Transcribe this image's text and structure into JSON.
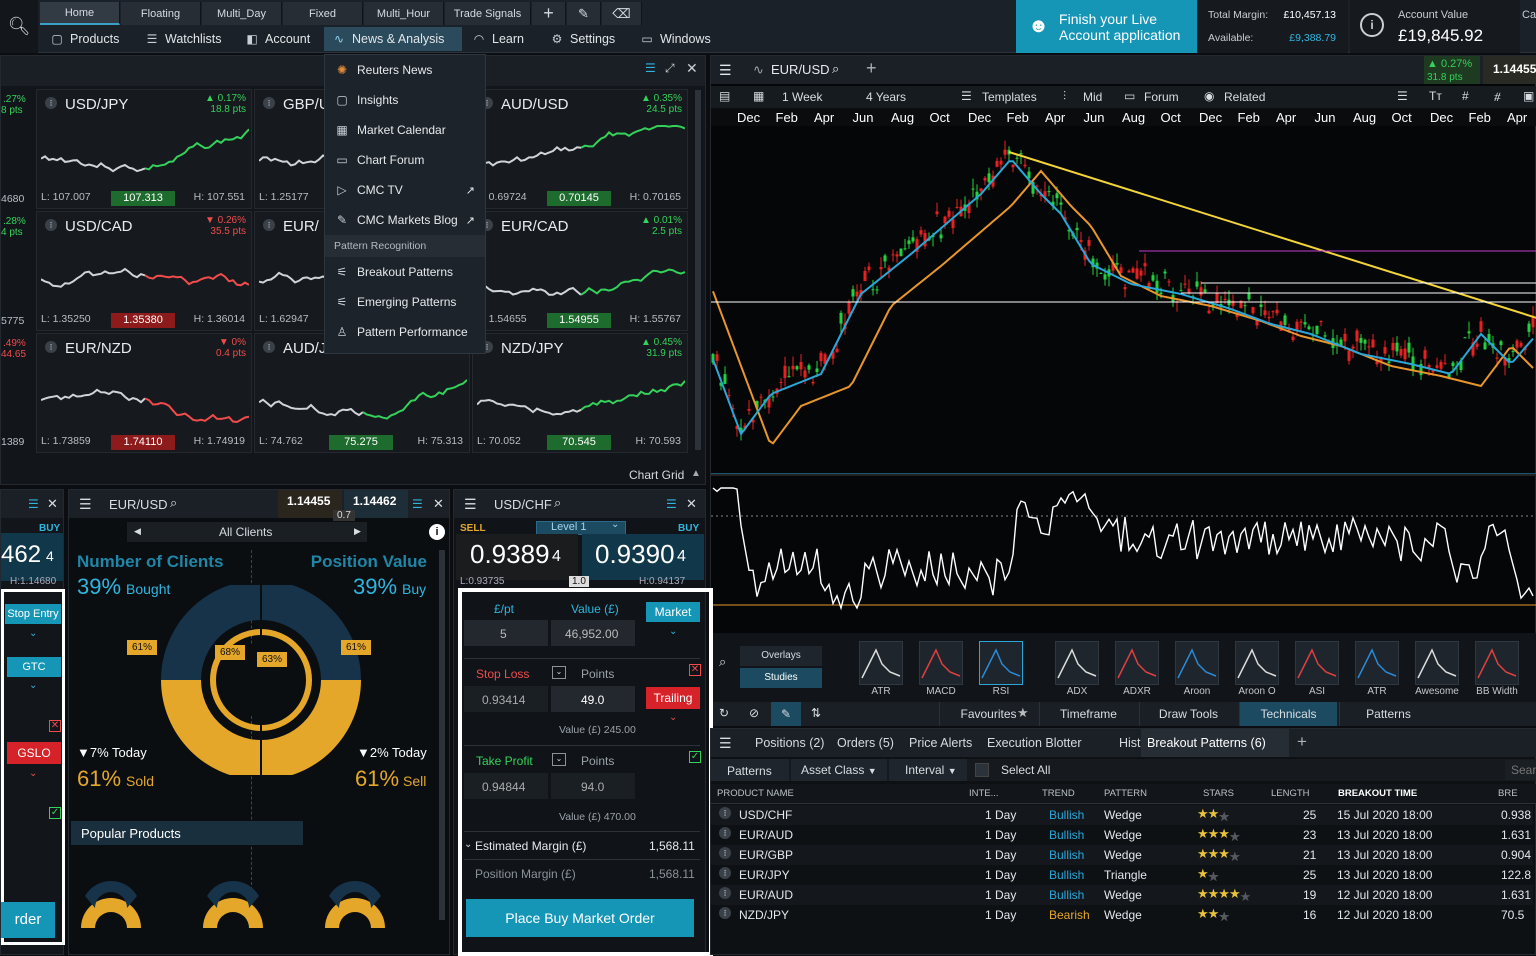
{
  "workspace_tabs": [
    "Home",
    "Floating",
    "Multi_Day",
    "Fixed",
    "Multi_Hour",
    "Trade Signals"
  ],
  "main_menu": [
    "Products",
    "Watchlists",
    "Account",
    "News & Analysis",
    "Learn",
    "Settings",
    "Windows"
  ],
  "finish_banner": "Finish your Live Account application",
  "margin": {
    "total_label": "Total Margin:",
    "total_value": "£10,457.13",
    "available_label": "Available:",
    "available_value": "£9,388.79"
  },
  "account": {
    "label": "Account Value",
    "value": "£19,845.92",
    "extra": "Ca"
  },
  "news_menu": {
    "items": [
      "Reuters News",
      "Insights",
      "Market Calendar",
      "Chart Forum",
      "CMC TV",
      "CMC Markets Blog"
    ],
    "section": "Pattern Recognition",
    "pattern_items": [
      "Breakout Patterns",
      "Emerging Patterns",
      "Pattern Performance"
    ]
  },
  "tiles": [
    {
      "name": "USD/JPY",
      "chg": "▲ 0.17%",
      "pts": "18.8 pts",
      "dir": "up",
      "lo": "L: 107.007",
      "cur": "107.313",
      "hi": "H: 107.551"
    },
    {
      "name": "GBP/U",
      "chg": "",
      "pts": "",
      "dir": "up",
      "lo": "L: 1.25177",
      "cur": "",
      "hi": ""
    },
    {
      "name": "AUD/USD",
      "chg": "▲ 0.35%",
      "pts": "24.5 pts",
      "dir": "up",
      "lo": "L: 0.69724",
      "cur": "0.70145",
      "hi": "H: 0.70165"
    },
    {
      "name": "USD/CAD",
      "chg": "▼ 0.26%",
      "pts": "35.5 pts",
      "dir": "dn",
      "lo": "L: 1.35250",
      "cur": "1.35380",
      "hi": "H: 1.36014"
    },
    {
      "name": "EUR/",
      "chg": "",
      "pts": "",
      "dir": "up",
      "lo": "L: 1.62947",
      "cur": "",
      "hi": ""
    },
    {
      "name": "EUR/CAD",
      "chg": "▲ 0.01%",
      "pts": "2.5 pts",
      "dir": "up",
      "lo": "L: 1.54655",
      "cur": "1.54955",
      "hi": "H: 1.55767"
    },
    {
      "name": "EUR/NZD",
      "chg": "▼ 0%",
      "pts": "0.4 pts",
      "dir": "dn",
      "lo": "L: 1.73859",
      "cur": "1.74110",
      "hi": "H: 1.74919"
    },
    {
      "name": "AUD/J",
      "chg": "",
      "pts": "",
      "dir": "up",
      "lo": "L: 74.762",
      "cur": "75.275",
      "hi": "H: 75.313"
    },
    {
      "name": "NZD/JPY",
      "chg": "▲ 0.45%",
      "pts": "31.9 pts",
      "dir": "up",
      "lo": "L: 70.052",
      "cur": "70.545",
      "hi": "H: 70.593"
    }
  ],
  "left_edge": {
    "p1": ".27%",
    "p1b": "8 pts",
    "v1": "4680",
    "p2": ".28%",
    "p2b": "4 pts",
    "v2": "5775",
    "p3": ".49%",
    "p3b": "44.65",
    "v3": "1389"
  },
  "chart_grid_label": "Chart Grid",
  "main_chart": {
    "symbol": "EUR/USD",
    "change": "▲ 0.27%",
    "pts": "31.8 pts",
    "price": "1.14455",
    "tabs": [
      "1 Week",
      "4 Years",
      "Templates",
      "Mid",
      "Forum",
      "Related"
    ],
    "months": [
      "Dec",
      "Feb",
      "Apr",
      "Jun",
      "Aug",
      "Oct",
      "Dec",
      "Feb",
      "Apr",
      "Jun",
      "Aug",
      "Oct",
      "Dec",
      "Feb",
      "Apr",
      "Jun",
      "Aug",
      "Oct",
      "Dec",
      "Feb",
      "Apr"
    ],
    "studies": [
      "Overlays",
      "Studies"
    ],
    "indicators": [
      "ATR",
      "MACD",
      "RSI",
      "ADX",
      "ADXR",
      "Aroon",
      "Aroon O",
      "ASI",
      "ATR",
      "Awesome",
      "BB Width"
    ],
    "bottom_tabs": [
      "Favourites",
      "Timeframe",
      "Draw Tools",
      "Technicals",
      "Patterns"
    ]
  },
  "client_sentiment": {
    "symbol": "EUR/USD",
    "sell": "1.14455",
    "buy": "1.14462",
    "spread": "0.7",
    "filter": "All Clients",
    "noc": "Number of Clients",
    "pv": "Position Value",
    "bought": "39%",
    "bought_lbl": "Bought",
    "buy_pct": "39%",
    "buy_lbl": "Buy",
    "ring_l": "61%",
    "ring_ml": "68%",
    "ring_mr": "63%",
    "ring_r": "61%",
    "today_l": "▼7% Today",
    "today_r": "▼2% Today",
    "sold": "61%",
    "sold_lbl": "Sold",
    "sell_pct": "61%",
    "sell_lbl": "Sell",
    "popular": "Popular Products"
  },
  "left_ticket": {
    "buy": "BUY",
    "price": "462",
    "price_big": "4",
    "hi": "H:1.14680",
    "stop_entry": "Stop Entry",
    "gtc": "GTC",
    "gslo": "GSLO",
    "order": "rder"
  },
  "order_ticket": {
    "symbol": "USD/CHF",
    "sell": "SELL",
    "buy": "BUY",
    "level": "Level 1",
    "sell_price": "0.9389",
    "sell_sub": "4",
    "buy_price": "0.9390",
    "buy_sub": "4",
    "lo": "L:0.93735",
    "mid": "1.0",
    "hi": "H:0.94137",
    "lbl_pt": "£/pt",
    "lbl_value": "Value (£)",
    "market": "Market",
    "qty": "5",
    "value": "46,952.00",
    "stop_loss": "Stop Loss",
    "points": "Points",
    "sl_price": "0.93414",
    "sl_points": "49.0",
    "trailing": "Trailing",
    "sl_value": "Value (£) 245.00",
    "take_profit": "Take Profit",
    "tp_points_lbl": "Points",
    "tp_price": "0.94844",
    "tp_points": "94.0",
    "tp_value": "Value (£) 470.00",
    "est_margin_lbl": "Estimated Margin (£)",
    "est_margin": "1,568.11",
    "pos_margin_lbl": "Position Margin (£)",
    "pos_margin": "1,568.11",
    "place": "Place Buy Market Order"
  },
  "blotter": {
    "tabs": [
      "Positions (2)",
      "Orders (5)",
      "Price Alerts",
      "Execution Blotter",
      "History",
      "Breakout Patterns (6)"
    ],
    "filters": [
      "Patterns",
      "Asset Class",
      "Interval",
      "Select All"
    ],
    "search": "Sear",
    "columns": [
      "PRODUCT NAME",
      "INTE...",
      "TREND",
      "PATTERN",
      "STARS",
      "LENGTH",
      "BREAKOUT TIME",
      "BRE"
    ],
    "rows": [
      {
        "product": "USD/CHF",
        "interval": "1 Day",
        "trend": "Bullish",
        "pattern": "Wedge",
        "stars": 2,
        "length": "25",
        "time": "15 Jul 2020 18:00",
        "last": "0.938"
      },
      {
        "product": "EUR/AUD",
        "interval": "1 Day",
        "trend": "Bullish",
        "pattern": "Wedge",
        "stars": 3,
        "length": "23",
        "time": "13 Jul 2020 18:00",
        "last": "1.631"
      },
      {
        "product": "EUR/GBP",
        "interval": "1 Day",
        "trend": "Bullish",
        "pattern": "Wedge",
        "stars": 3,
        "length": "21",
        "time": "13 Jul 2020 18:00",
        "last": "0.904"
      },
      {
        "product": "EUR/JPY",
        "interval": "1 Day",
        "trend": "Bullish",
        "pattern": "Triangle",
        "stars": 1,
        "length": "25",
        "time": "13 Jul 2020 18:00",
        "last": "122.8"
      },
      {
        "product": "EUR/AUD",
        "interval": "1 Day",
        "trend": "Bullish",
        "pattern": "Wedge",
        "stars": 4,
        "length": "19",
        "time": "12 Jul 2020 18:00",
        "last": "1.631"
      },
      {
        "product": "NZD/JPY",
        "interval": "1 Day",
        "trend": "Bearish",
        "pattern": "Wedge",
        "stars": 2,
        "length": "16",
        "time": "12 Jul 2020 18:00",
        "last": "70.5"
      }
    ]
  },
  "colors": {
    "accent": "#1596b7",
    "up": "#34d25a",
    "down": "#f04c4c",
    "gold": "#e4a72a",
    "blue": "#2aa7d8"
  }
}
